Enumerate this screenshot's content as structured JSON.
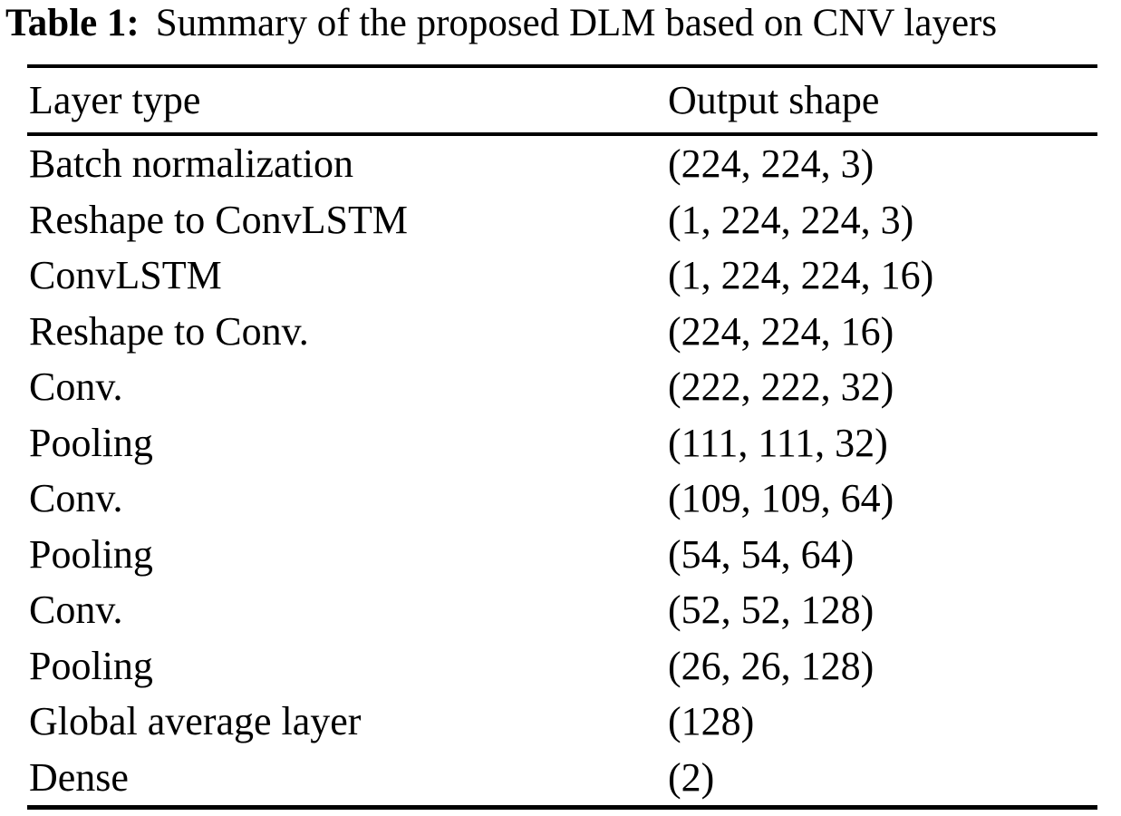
{
  "caption": {
    "label": "Table 1:",
    "text": "Summary of the proposed DLM based on CNV layers"
  },
  "table": {
    "columns": [
      "Layer type",
      "Output shape"
    ],
    "rows": [
      [
        "Batch normalization",
        "(224, 224, 3)"
      ],
      [
        "Reshape to ConvLSTM",
        "(1, 224, 224, 3)"
      ],
      [
        "ConvLSTM",
        "(1, 224, 224, 16)"
      ],
      [
        "Reshape to Conv.",
        "(224, 224, 16)"
      ],
      [
        "Conv.",
        "(222, 222, 32)"
      ],
      [
        "Pooling",
        "(111, 111, 32)"
      ],
      [
        "Conv.",
        "(109, 109, 64)"
      ],
      [
        "Pooling",
        "(54, 54, 64)"
      ],
      [
        "Conv.",
        "(52, 52, 128)"
      ],
      [
        "Pooling",
        "(26, 26, 128)"
      ],
      [
        "Global average layer",
        "(128)"
      ],
      [
        "Dense",
        "(2)"
      ]
    ]
  },
  "colors": {
    "text": "#000000",
    "background": "#ffffff",
    "rule": "#000000"
  }
}
